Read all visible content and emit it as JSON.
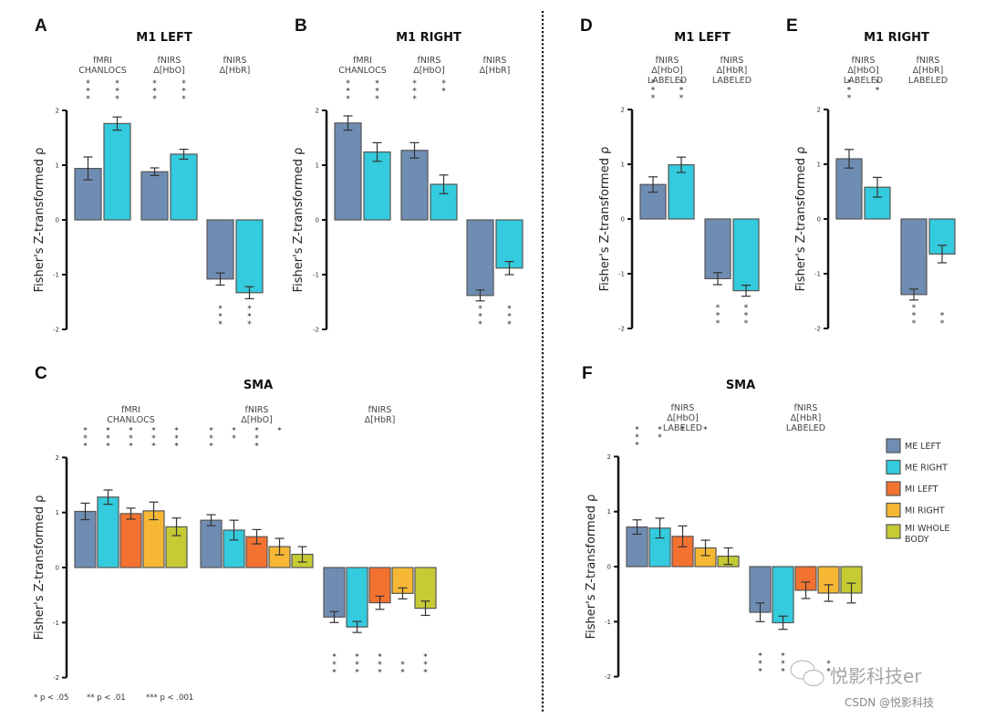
{
  "figure": {
    "footnote": [
      "* p < .05",
      "** p < .01",
      "*** p < .001"
    ],
    "watermark": {
      "main": "悦影科技er",
      "sub": "CSDN @悦影科技"
    },
    "legend": [
      {
        "label": "ME LEFT",
        "color": "#6f8db3"
      },
      {
        "label": "ME RIGHT",
        "color": "#33cbdd"
      },
      {
        "label": "MI LEFT",
        "color": "#f47230"
      },
      {
        "label": "MI RIGHT",
        "color": "#f6b834"
      },
      {
        "label": "MI WHOLE BODY",
        "color": "#c6cb34"
      }
    ]
  },
  "chart_data": [
    {
      "panel": "A",
      "type": "bar",
      "title": "M1 LEFT",
      "ylabel": "Fisher's Z-transformed ρ",
      "ylim": [
        -2,
        2
      ],
      "yticks": [
        "2",
        "1",
        "0",
        "-1",
        "-2"
      ],
      "groups": [
        {
          "label": [
            "fMRI",
            "CHANLOCS"
          ]
        },
        {
          "label": [
            "fNIRS",
            "Δ[HbO]"
          ]
        },
        {
          "label": [
            "fNIRS",
            "Δ[HbR]"
          ]
        }
      ],
      "series": [
        {
          "name": "ME LEFT",
          "values": [
            0.94,
            0.88,
            -1.08
          ],
          "errors": [
            0.21,
            0.07,
            0.11
          ],
          "stars": [
            "***",
            "***",
            "***"
          ]
        },
        {
          "name": "ME RIGHT",
          "values": [
            1.76,
            1.2,
            -1.33
          ],
          "errors": [
            0.12,
            0.09,
            0.11
          ],
          "stars": [
            "***",
            "***",
            "***"
          ]
        }
      ]
    },
    {
      "panel": "B",
      "type": "bar",
      "title": "M1 RIGHT",
      "ylabel": "Fisher's Z-transformed ρ",
      "ylim": [
        -2,
        2
      ],
      "yticks": [
        "2",
        "1",
        "0",
        "-1",
        "-2"
      ],
      "groups": [
        {
          "label": [
            "fMRI",
            "CHANLOCS"
          ]
        },
        {
          "label": [
            "fNIRS",
            "Δ[HbO]"
          ]
        },
        {
          "label": [
            "fNIRS",
            "Δ[HbR]"
          ]
        }
      ],
      "series": [
        {
          "name": "ME LEFT",
          "values": [
            1.77,
            1.27,
            -1.38
          ],
          "errors": [
            0.13,
            0.14,
            0.1
          ],
          "stars": [
            "***",
            "***",
            "***"
          ]
        },
        {
          "name": "ME RIGHT",
          "values": [
            1.24,
            0.65,
            -0.88
          ],
          "errors": [
            0.17,
            0.17,
            0.12
          ],
          "stars": [
            "***",
            "**",
            "***"
          ]
        }
      ]
    },
    {
      "panel": "D",
      "type": "bar",
      "title": "M1 LEFT",
      "ylabel": "Fisher's Z-transformed ρ",
      "ylim": [
        -2,
        2
      ],
      "yticks": [
        "2",
        "1",
        "0",
        "-1",
        "-2"
      ],
      "groups": [
        {
          "label": [
            "fNIRS",
            "Δ[HbO]",
            "LABELED"
          ]
        },
        {
          "label": [
            "fNIRS",
            "Δ[HbR]",
            "LABELED"
          ]
        }
      ],
      "series": [
        {
          "name": "ME LEFT",
          "values": [
            0.63,
            -1.09
          ],
          "errors": [
            0.14,
            0.11
          ],
          "stars": [
            "***",
            "***"
          ]
        },
        {
          "name": "ME RIGHT",
          "values": [
            0.99,
            -1.31
          ],
          "errors": [
            0.14,
            0.1
          ],
          "stars": [
            "***",
            "***"
          ]
        }
      ]
    },
    {
      "panel": "E",
      "type": "bar",
      "title": "M1 RIGHT",
      "ylabel": "Fisher's Z-transformed ρ",
      "ylim": [
        -2,
        2
      ],
      "yticks": [
        "2",
        "1",
        "0",
        "-1",
        "-2"
      ],
      "groups": [
        {
          "label": [
            "fNIRS",
            "Δ[HbO]",
            "LABELED"
          ]
        },
        {
          "label": [
            "fNIRS",
            "Δ[HbR]",
            "LABELED"
          ]
        }
      ],
      "series": [
        {
          "name": "ME LEFT",
          "values": [
            1.1,
            -1.38
          ],
          "errors": [
            0.17,
            0.1
          ],
          "stars": [
            "***",
            "***"
          ]
        },
        {
          "name": "ME RIGHT",
          "values": [
            0.58,
            -0.64
          ],
          "errors": [
            0.18,
            0.16
          ],
          "stars": [
            "**",
            "**"
          ]
        }
      ]
    },
    {
      "panel": "C",
      "type": "bar",
      "title": "SMA",
      "ylabel": "Fisher's Z-transformed ρ",
      "ylim": [
        -2,
        2
      ],
      "yticks": [
        "2",
        "1",
        "0",
        "-1",
        "-2"
      ],
      "groups": [
        {
          "label": [
            "fMRI",
            "CHANLOCS"
          ]
        },
        {
          "label": [
            "fNIRS",
            "Δ[HbO]"
          ]
        },
        {
          "label": [
            "fNIRS",
            "Δ[HbR]"
          ]
        }
      ],
      "series": [
        {
          "name": "ME LEFT",
          "values": [
            1.02,
            0.86,
            -0.9
          ],
          "errors": [
            0.15,
            0.1,
            0.1
          ],
          "stars": [
            "***",
            "***",
            "***"
          ]
        },
        {
          "name": "ME RIGHT",
          "values": [
            1.28,
            0.68,
            -1.08
          ],
          "errors": [
            0.13,
            0.18,
            0.1
          ],
          "stars": [
            "***",
            "**",
            "***"
          ]
        },
        {
          "name": "MI LEFT",
          "values": [
            0.98,
            0.56,
            -0.64
          ],
          "errors": [
            0.1,
            0.13,
            0.12
          ],
          "stars": [
            "***",
            "***",
            "***"
          ]
        },
        {
          "name": "MI RIGHT",
          "values": [
            1.03,
            0.38,
            -0.47
          ],
          "errors": [
            0.16,
            0.15,
            0.1
          ],
          "stars": [
            "***",
            "*",
            "**"
          ]
        },
        {
          "name": "MI WHOLE BODY",
          "values": [
            0.74,
            0.24,
            -0.74
          ],
          "errors": [
            0.16,
            0.14,
            0.13
          ],
          "stars": [
            "***",
            "",
            "***"
          ]
        }
      ]
    },
    {
      "panel": "F",
      "type": "bar",
      "title": "SMA",
      "ylabel": "Fisher's Z-transformed ρ",
      "ylim": [
        -2,
        2
      ],
      "yticks": [
        "2",
        "1",
        "0",
        "-1",
        "-2"
      ],
      "groups": [
        {
          "label": [
            "fNIRS",
            "Δ[HbO]",
            "LABELED"
          ]
        },
        {
          "label": [
            "fNIRS",
            "Δ[HbR]",
            "LABELED"
          ]
        }
      ],
      "series": [
        {
          "name": "ME LEFT",
          "values": [
            0.72,
            -0.83
          ],
          "errors": [
            0.13,
            0.17
          ],
          "stars": [
            "***",
            "***"
          ]
        },
        {
          "name": "ME RIGHT",
          "values": [
            0.7,
            -1.02
          ],
          "errors": [
            0.18,
            0.12
          ],
          "stars": [
            "**",
            "***"
          ]
        },
        {
          "name": "MI LEFT",
          "values": [
            0.55,
            -0.43
          ],
          "errors": [
            0.19,
            0.15
          ],
          "stars": [
            "*",
            ""
          ]
        },
        {
          "name": "MI RIGHT",
          "values": [
            0.34,
            -0.48
          ],
          "errors": [
            0.14,
            0.15
          ],
          "stars": [
            "*",
            "**"
          ]
        },
        {
          "name": "MI WHOLE BODY",
          "values": [
            0.19,
            -0.48
          ],
          "errors": [
            0.15,
            0.18
          ],
          "stars": [
            "",
            ""
          ]
        }
      ]
    }
  ]
}
